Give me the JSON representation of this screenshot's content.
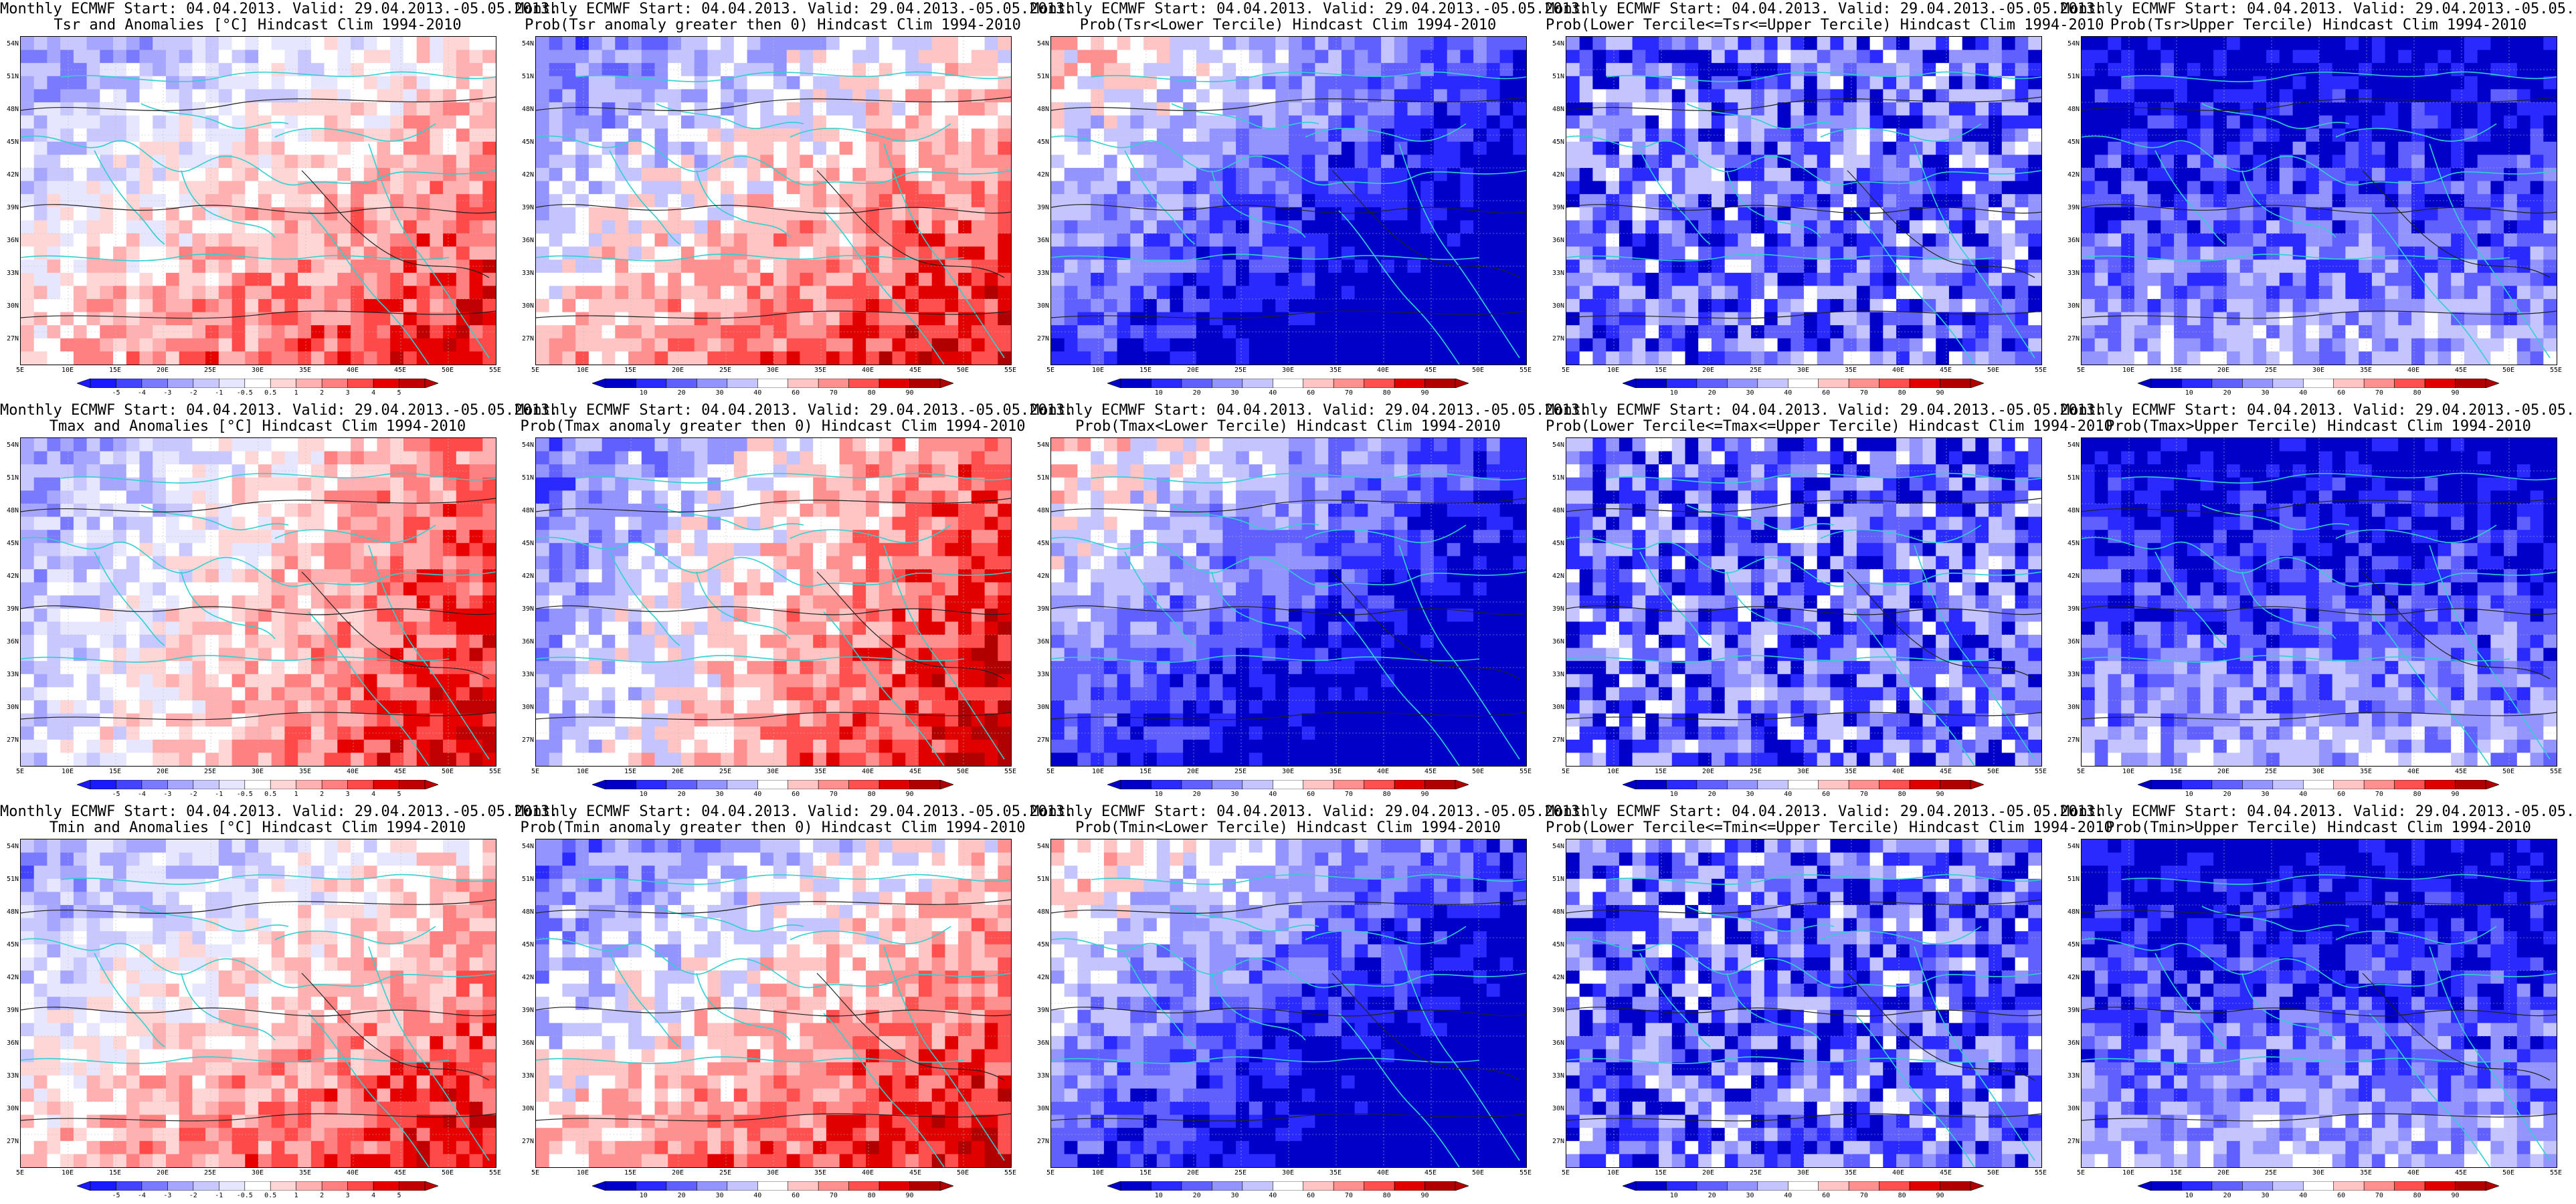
{
  "header_common": "Monthly ECMWF Start: 04.04.2013. Valid: 29.04.2013.-05.05.2013.",
  "lat_labels": [
    "54N",
    "51N",
    "48N",
    "45N",
    "42N",
    "39N",
    "36N",
    "33N",
    "30N",
    "27N"
  ],
  "lon_labels": [
    "5E",
    "10E",
    "15E",
    "20E",
    "25E",
    "30E",
    "35E",
    "40E",
    "45E",
    "50E",
    "55E"
  ],
  "anom_ticks": [
    "-5",
    "-4",
    "-3",
    "-2",
    "-1",
    "-0.5",
    "0.5",
    "1",
    "2",
    "3",
    "4",
    "5"
  ],
  "prob_ticks": [
    "10",
    "20",
    "30",
    "40",
    "60",
    "70",
    "80",
    "90"
  ],
  "panels": [
    {
      "title2": "Tsr and Anomalies [°C] Hindcast Clim 1994-2010",
      "kind": "anom",
      "scheme": "red_south"
    },
    {
      "title2": "Prob(Tsr anomaly greater then 0) Hindcast Clim 1994-2010",
      "kind": "prob",
      "scheme": "red_south"
    },
    {
      "title2": "Prob(Tsr<Lower Tercile) Hindcast Clim 1994-2010",
      "kind": "prob",
      "scheme": "blue_southeast"
    },
    {
      "title2": "Prob(Lower Tercile<=Tsr<=Upper Tercile) Hindcast Clim 1994-2010",
      "kind": "prob",
      "scheme": "blue_mixed"
    },
    {
      "title2": "Prob(Tsr>Upper Tercile) Hindcast Clim 1994-2010",
      "kind": "prob",
      "scheme": "blue_north"
    },
    {
      "title2": "Tmax and Anomalies [°C] Hindcast Clim 1994-2010",
      "kind": "anom",
      "scheme": "red_east"
    },
    {
      "title2": "Prob(Tmax anomaly greater then 0) Hindcast Clim 1994-2010",
      "kind": "prob",
      "scheme": "red_east"
    },
    {
      "title2": "Prob(Tmax<Lower Tercile) Hindcast Clim 1994-2010",
      "kind": "prob",
      "scheme": "blue_southeast"
    },
    {
      "title2": "Prob(Lower Tercile<=Tmax<=Upper Tercile) Hindcast Clim 1994-2010",
      "kind": "prob",
      "scheme": "blue_mixed"
    },
    {
      "title2": "Prob(Tmax>Upper Tercile) Hindcast Clim 1994-2010",
      "kind": "prob",
      "scheme": "blue_north"
    },
    {
      "title2": "Tmin and Anomalies [°C] Hindcast Clim 1994-2010",
      "kind": "anom",
      "scheme": "red_south"
    },
    {
      "title2": "Prob(Tmin anomaly greater then 0) Hindcast Clim 1994-2010",
      "kind": "prob",
      "scheme": "red_south"
    },
    {
      "title2": "Prob(Tmin<Lower Tercile) Hindcast Clim 1994-2010",
      "kind": "prob",
      "scheme": "blue_southeast"
    },
    {
      "title2": "Prob(Lower Tercile<=Tmin<=Upper Tercile) Hindcast Clim 1994-2010",
      "kind": "prob",
      "scheme": "blue_mixed"
    },
    {
      "title2": "Prob(Tmin>Upper Tercile) Hindcast Clim 1994-2010",
      "kind": "prob",
      "scheme": "blue_north"
    }
  ],
  "colors": {
    "anom": [
      "#1a1aff",
      "#4444ff",
      "#7a7aff",
      "#a6a6ff",
      "#c8c8ff",
      "#e6e6ff",
      "#ffffff",
      "#ffd6d6",
      "#ffb0b0",
      "#ff8080",
      "#ff4a4a",
      "#e60000",
      "#c00000"
    ],
    "prob": [
      "#0000c8",
      "#2a2aff",
      "#6060ff",
      "#9494ff",
      "#c4c4ff",
      "#ffffff",
      "#ffc4c4",
      "#ff9090",
      "#ff5050",
      "#e00000",
      "#b00000"
    ],
    "coast": "#30d0d0",
    "contour": "#202020"
  }
}
